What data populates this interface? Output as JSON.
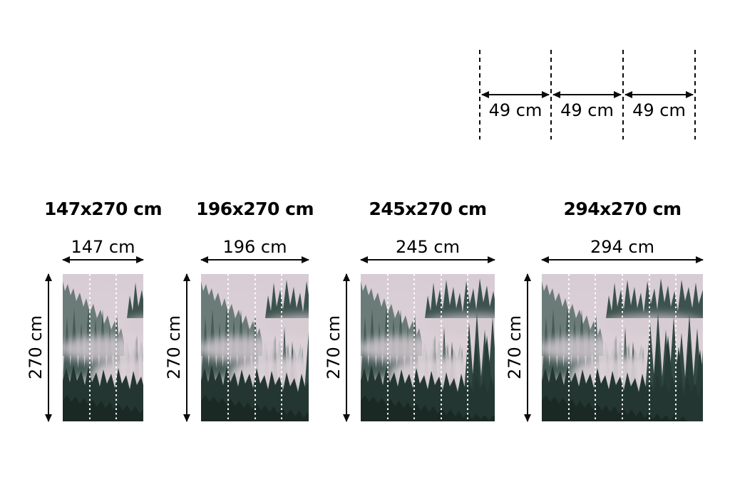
{
  "background": "#ffffff",
  "text_color": "#000000",
  "panel_width_cm": 49,
  "panel_diagram": {
    "segments": [
      {
        "label": "49 cm"
      },
      {
        "label": "49 cm"
      },
      {
        "label": "49 cm"
      }
    ]
  },
  "products": [
    {
      "title": "147x270 cm",
      "width_label": "147 cm",
      "height_label": "270 cm",
      "width_cm": 147,
      "height_cm": 270,
      "panels": 3
    },
    {
      "title": "196x270 cm",
      "width_label": "196 cm",
      "height_label": "270 cm",
      "width_cm": 196,
      "height_cm": 270,
      "panels": 4
    },
    {
      "title": "245x270 cm",
      "width_label": "245 cm",
      "height_label": "270 cm",
      "width_cm": 245,
      "height_cm": 270,
      "panels": 5
    },
    {
      "title": "294x270 cm",
      "width_label": "294 cm",
      "height_label": "270 cm",
      "width_cm": 294,
      "height_cm": 270,
      "panels": 6
    }
  ],
  "image": {
    "subject": "foggy-forest-mural",
    "seam_line_color": "#ffffff",
    "fog_color": "#ddd2d8",
    "tree_dark_color": "#243631",
    "sky_color": "#d7ccd3"
  }
}
